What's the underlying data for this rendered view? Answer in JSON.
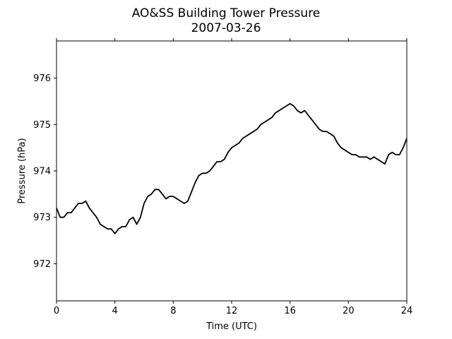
{
  "chart_data": {
    "type": "line",
    "title": "AO&SS Building Tower Pressure",
    "subtitle": "2007-03-26",
    "xlabel": "Time (UTC)",
    "ylabel": "Pressure (hPa)",
    "xlim": [
      0,
      24
    ],
    "ylim": [
      971.2,
      976.8
    ],
    "xticks": [
      0,
      4,
      8,
      12,
      16,
      20,
      24
    ],
    "yticks": [
      972,
      973,
      974,
      975,
      976
    ],
    "grid": false,
    "series": [
      {
        "color": "#000000",
        "x": [
          0,
          0.25,
          0.5,
          0.75,
          1.0,
          1.25,
          1.5,
          1.75,
          2.0,
          2.25,
          2.5,
          2.75,
          3.0,
          3.25,
          3.5,
          3.75,
          4.0,
          4.25,
          4.5,
          4.75,
          5.0,
          5.25,
          5.5,
          5.75,
          6.0,
          6.25,
          6.5,
          6.75,
          7.0,
          7.25,
          7.5,
          7.75,
          8.0,
          8.25,
          8.5,
          8.75,
          9.0,
          9.25,
          9.5,
          9.75,
          10.0,
          10.25,
          10.5,
          10.75,
          11.0,
          11.25,
          11.5,
          11.75,
          12.0,
          12.25,
          12.5,
          12.75,
          13.0,
          13.25,
          13.5,
          13.75,
          14.0,
          14.25,
          14.5,
          14.75,
          15.0,
          15.25,
          15.5,
          15.75,
          16.0,
          16.25,
          16.5,
          16.75,
          17.0,
          17.25,
          17.5,
          17.75,
          18.0,
          18.25,
          18.5,
          18.75,
          19.0,
          19.25,
          19.5,
          19.75,
          20.0,
          20.25,
          20.5,
          20.75,
          21.0,
          21.25,
          21.5,
          21.75,
          22.0,
          22.25,
          22.5,
          22.75,
          23.0,
          23.25,
          23.5,
          23.75,
          24.0
        ],
        "values": [
          973.2,
          973.0,
          973.0,
          973.1,
          973.1,
          973.2,
          973.3,
          973.3,
          973.35,
          973.2,
          973.1,
          973.0,
          972.85,
          972.8,
          972.75,
          972.75,
          972.65,
          972.75,
          972.8,
          972.8,
          972.95,
          973.0,
          972.85,
          973.0,
          973.3,
          973.45,
          973.5,
          973.6,
          973.6,
          973.5,
          973.4,
          973.45,
          973.45,
          973.4,
          973.35,
          973.3,
          973.35,
          973.55,
          973.75,
          973.9,
          973.95,
          973.95,
          974.0,
          974.1,
          974.2,
          974.2,
          974.25,
          974.4,
          974.5,
          974.55,
          974.6,
          974.7,
          974.75,
          974.8,
          974.85,
          974.9,
          975.0,
          975.05,
          975.1,
          975.15,
          975.25,
          975.3,
          975.35,
          975.4,
          975.45,
          975.4,
          975.3,
          975.25,
          975.3,
          975.2,
          975.1,
          975.0,
          974.9,
          974.85,
          974.85,
          974.8,
          974.75,
          974.6,
          974.5,
          974.45,
          974.4,
          974.35,
          974.35,
          974.3,
          974.3,
          974.3,
          974.25,
          974.3,
          974.25,
          974.2,
          974.15,
          974.35,
          974.4,
          974.35,
          974.35,
          974.5,
          974.7
        ]
      }
    ]
  }
}
